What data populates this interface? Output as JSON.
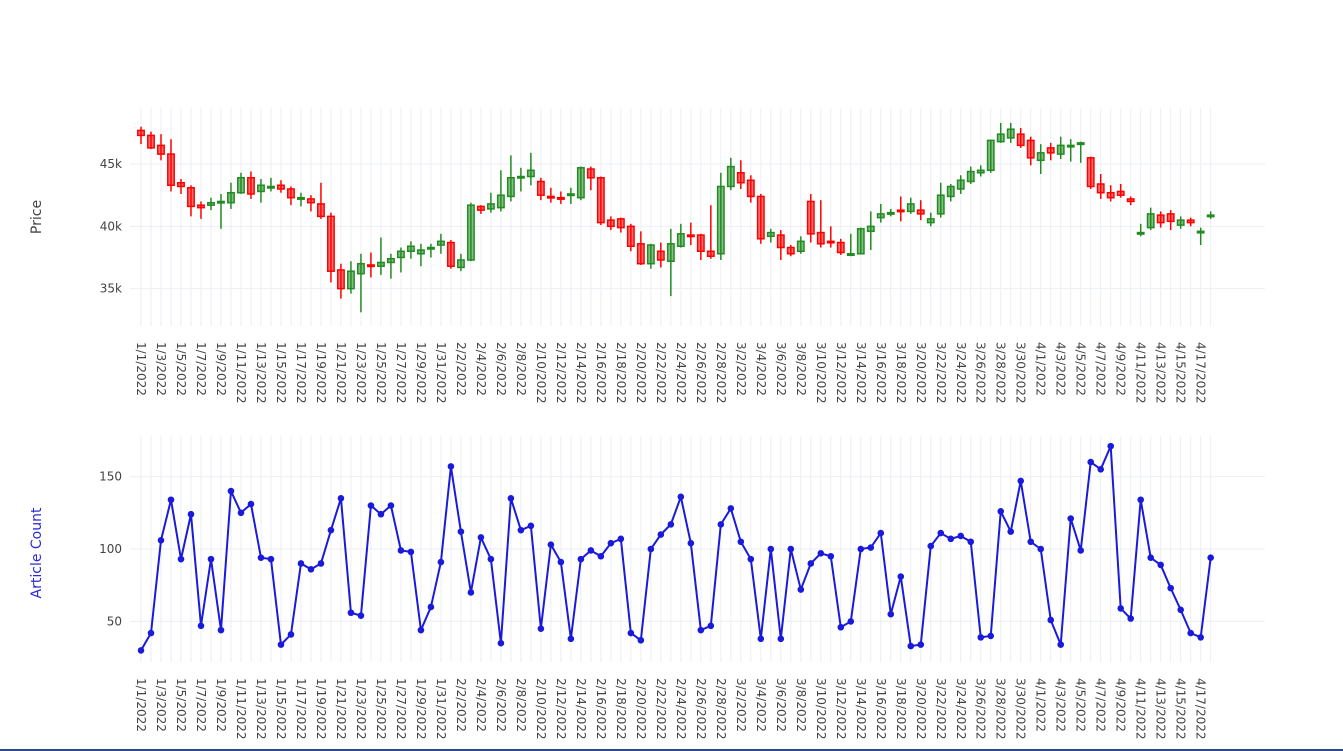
{
  "chart_data": [
    {
      "type": "candlestick",
      "ylabel": "Price",
      "ylim": [
        32000,
        49500
      ],
      "yticks": [
        35000,
        40000,
        45000
      ],
      "ytick_labels": [
        "35k",
        "40k",
        "45k"
      ],
      "grid": true,
      "colors": {
        "up": "#228b22",
        "down": "#ff0000"
      },
      "x": [
        "1/1/2022",
        "1/2/2022",
        "1/3/2022",
        "1/4/2022",
        "1/5/2022",
        "1/6/2022",
        "1/7/2022",
        "1/8/2022",
        "1/9/2022",
        "1/10/2022",
        "1/11/2022",
        "1/12/2022",
        "1/13/2022",
        "1/14/2022",
        "1/15/2022",
        "1/16/2022",
        "1/17/2022",
        "1/18/2022",
        "1/19/2022",
        "1/20/2022",
        "1/21/2022",
        "1/22/2022",
        "1/23/2022",
        "1/24/2022",
        "1/25/2022",
        "1/26/2022",
        "1/27/2022",
        "1/28/2022",
        "1/29/2022",
        "1/30/2022",
        "1/31/2022",
        "2/1/2022",
        "2/2/2022",
        "2/3/2022",
        "2/4/2022",
        "2/5/2022",
        "2/6/2022",
        "2/7/2022",
        "2/8/2022",
        "2/9/2022",
        "2/10/2022",
        "2/11/2022",
        "2/12/2022",
        "2/13/2022",
        "2/14/2022",
        "2/15/2022",
        "2/16/2022",
        "2/17/2022",
        "2/18/2022",
        "2/19/2022",
        "2/20/2022",
        "2/21/2022",
        "2/22/2022",
        "2/23/2022",
        "2/24/2022",
        "2/25/2022",
        "2/26/2022",
        "2/27/2022",
        "2/28/2022",
        "3/1/2022",
        "3/2/2022",
        "3/3/2022",
        "3/4/2022",
        "3/5/2022",
        "3/6/2022",
        "3/7/2022",
        "3/8/2022",
        "3/9/2022",
        "3/10/2022",
        "3/11/2022",
        "3/12/2022",
        "3/13/2022",
        "3/14/2022",
        "3/15/2022",
        "3/16/2022",
        "3/17/2022",
        "3/18/2022",
        "3/19/2022",
        "3/20/2022",
        "3/21/2022",
        "3/22/2022",
        "3/23/2022",
        "3/24/2022",
        "3/25/2022",
        "3/26/2022",
        "3/27/2022",
        "3/28/2022",
        "3/29/2022",
        "3/30/2022",
        "3/31/2022",
        "4/1/2022",
        "4/2/2022",
        "4/3/2022",
        "4/4/2022",
        "4/5/2022",
        "4/6/2022",
        "4/7/2022",
        "4/8/2022",
        "4/9/2022",
        "4/10/2022",
        "4/11/2022",
        "4/12/2022",
        "4/13/2022",
        "4/14/2022",
        "4/15/2022",
        "4/16/2022",
        "4/17/2022",
        "4/18/2022"
      ],
      "open": [
        47700,
        47300,
        46500,
        45800,
        43500,
        43100,
        41700,
        41700,
        41900,
        41900,
        42700,
        43900,
        42800,
        43200,
        43300,
        43000,
        42300,
        42200,
        41800,
        40800,
        36500,
        35000,
        36200,
        36900,
        36800,
        37100,
        37500,
        38000,
        37800,
        38200,
        38500,
        38700,
        36700,
        37300,
        41600,
        41400,
        41500,
        42400,
        44000,
        44000,
        43600,
        42400,
        42300,
        42500,
        42300,
        44600,
        43900,
        40500,
        40600,
        40000,
        38600,
        37000,
        38000,
        37200,
        38400,
        39300,
        39300,
        38000,
        37800,
        43200,
        44300,
        43700,
        42400,
        39200,
        39300,
        38300,
        38000,
        42000,
        39500,
        38800,
        38700,
        37800,
        37800,
        39600,
        40700,
        41100,
        41300,
        41200,
        41300,
        40300,
        41000,
        42400,
        43000,
        43600,
        44300,
        44500,
        46800,
        47100,
        47400,
        46900,
        45300,
        46300,
        45800,
        46500,
        46600,
        45500,
        43400,
        42700,
        42800,
        42200,
        39500,
        39900,
        40900,
        41000,
        40100,
        40500,
        39600,
        40800
      ],
      "close": [
        47300,
        46300,
        45800,
        43300,
        43200,
        41600,
        41500,
        41900,
        42000,
        42700,
        43900,
        42600,
        43300,
        43200,
        43000,
        42300,
        42300,
        41900,
        40800,
        36400,
        35000,
        36400,
        37000,
        36800,
        37100,
        37400,
        38000,
        38400,
        38100,
        38300,
        38800,
        36800,
        37300,
        41700,
        41300,
        41800,
        42500,
        43900,
        44000,
        44500,
        42500,
        42300,
        42200,
        42600,
        44700,
        43900,
        40300,
        40000,
        39900,
        38400,
        37000,
        38500,
        37300,
        38600,
        39400,
        39200,
        38000,
        37600,
        43200,
        44800,
        43500,
        42400,
        39000,
        39500,
        38300,
        37800,
        38800,
        39400,
        38600,
        38700,
        37900,
        37800,
        39800,
        40000,
        41000,
        41100,
        41200,
        41800,
        41000,
        40600,
        42500,
        43200,
        43700,
        44400,
        44500,
        46900,
        47400,
        47800,
        46500,
        45500,
        45900,
        45900,
        46500,
        46500,
        46700,
        43200,
        42700,
        42300,
        42500,
        42000,
        39500,
        41000,
        40300,
        40400,
        40500,
        40300,
        39600,
        40900
      ],
      "high": [
        48000,
        47600,
        47400,
        47000,
        43800,
        43300,
        42000,
        42300,
        42600,
        43500,
        44300,
        44400,
        43800,
        43900,
        43700,
        43200,
        42700,
        42500,
        43500,
        41100,
        37000,
        37200,
        37800,
        37900,
        39100,
        37800,
        38300,
        38800,
        38600,
        38600,
        39400,
        38900,
        37800,
        41900,
        41700,
        42700,
        44500,
        45700,
        44700,
        45900,
        43900,
        43100,
        42800,
        43100,
        44800,
        44800,
        44000,
        40800,
        40700,
        40200,
        39600,
        38600,
        38700,
        39800,
        40200,
        40300,
        39400,
        41700,
        44300,
        45500,
        45300,
        44100,
        42600,
        39800,
        39700,
        38500,
        39200,
        42600,
        42100,
        40000,
        39000,
        39400,
        39900,
        41200,
        41800,
        41400,
        42400,
        42300,
        42100,
        41100,
        43500,
        43400,
        44100,
        44800,
        44900,
        46900,
        48300,
        48300,
        47900,
        47200,
        46600,
        46700,
        47200,
        47000,
        46800,
        45600,
        44200,
        43300,
        43400,
        42400,
        40200,
        41500,
        41200,
        41300,
        40800,
        40700,
        39900,
        41200
      ],
      "low": [
        46600,
        46200,
        45300,
        42800,
        42600,
        40800,
        40600,
        41300,
        39800,
        41400,
        42600,
        42200,
        41900,
        42800,
        42700,
        41700,
        41600,
        41200,
        40600,
        35500,
        34200,
        34600,
        33100,
        35900,
        36100,
        35800,
        36300,
        37400,
        36800,
        37500,
        37800,
        36600,
        36400,
        37200,
        41000,
        41100,
        41200,
        42000,
        42800,
        43300,
        42100,
        41900,
        41800,
        41800,
        42100,
        42900,
        40100,
        39700,
        39500,
        38000,
        36900,
        36600,
        36700,
        34400,
        38300,
        38500,
        37300,
        37400,
        37300,
        42900,
        43000,
        41900,
        38600,
        38700,
        37300,
        37600,
        37800,
        38700,
        38300,
        38300,
        37700,
        37600,
        37800,
        38100,
        40300,
        40800,
        40400,
        41000,
        40500,
        40000,
        40700,
        42000,
        42600,
        43400,
        44000,
        44300,
        46700,
        46700,
        46300,
        44900,
        44200,
        45300,
        45400,
        45200,
        45100,
        43000,
        42200,
        42000,
        42300,
        41700,
        39200,
        39700,
        39900,
        39700,
        39800,
        40000,
        38500,
        40600
      ]
    },
    {
      "type": "line",
      "ylabel": "Article Count",
      "ylim": [
        22,
        178
      ],
      "yticks": [
        50,
        100,
        150
      ],
      "ytick_labels": [
        "50",
        "100",
        "150"
      ],
      "grid": true,
      "colors": {
        "line": "#1a1adb",
        "label": "#2a2ad6"
      },
      "x": [
        "1/1/2022",
        "1/2/2022",
        "1/3/2022",
        "1/4/2022",
        "1/5/2022",
        "1/6/2022",
        "1/7/2022",
        "1/8/2022",
        "1/9/2022",
        "1/10/2022",
        "1/11/2022",
        "1/12/2022",
        "1/13/2022",
        "1/14/2022",
        "1/15/2022",
        "1/16/2022",
        "1/17/2022",
        "1/18/2022",
        "1/19/2022",
        "1/20/2022",
        "1/21/2022",
        "1/22/2022",
        "1/23/2022",
        "1/24/2022",
        "1/25/2022",
        "1/26/2022",
        "1/27/2022",
        "1/28/2022",
        "1/29/2022",
        "1/30/2022",
        "1/31/2022",
        "2/1/2022",
        "2/2/2022",
        "2/3/2022",
        "2/4/2022",
        "2/5/2022",
        "2/6/2022",
        "2/7/2022",
        "2/8/2022",
        "2/9/2022",
        "2/10/2022",
        "2/11/2022",
        "2/12/2022",
        "2/13/2022",
        "2/14/2022",
        "2/15/2022",
        "2/16/2022",
        "2/17/2022",
        "2/18/2022",
        "2/19/2022",
        "2/20/2022",
        "2/21/2022",
        "2/22/2022",
        "2/23/2022",
        "2/24/2022",
        "2/25/2022",
        "2/26/2022",
        "2/27/2022",
        "2/28/2022",
        "3/1/2022",
        "3/2/2022",
        "3/3/2022",
        "3/4/2022",
        "3/5/2022",
        "3/6/2022",
        "3/7/2022",
        "3/8/2022",
        "3/9/2022",
        "3/10/2022",
        "3/11/2022",
        "3/12/2022",
        "3/13/2022",
        "3/14/2022",
        "3/15/2022",
        "3/16/2022",
        "3/17/2022",
        "3/18/2022",
        "3/19/2022",
        "3/20/2022",
        "3/21/2022",
        "3/22/2022",
        "3/23/2022",
        "3/24/2022",
        "3/25/2022",
        "3/26/2022",
        "3/27/2022",
        "3/28/2022",
        "3/29/2022",
        "3/30/2022",
        "3/31/2022",
        "4/1/2022",
        "4/2/2022",
        "4/3/2022",
        "4/4/2022",
        "4/5/2022",
        "4/6/2022",
        "4/7/2022",
        "4/8/2022",
        "4/9/2022",
        "4/10/2022",
        "4/11/2022",
        "4/12/2022",
        "4/13/2022",
        "4/14/2022",
        "4/15/2022",
        "4/16/2022",
        "4/17/2022",
        "4/18/2022"
      ],
      "values": [
        30,
        42,
        106,
        134,
        93,
        124,
        47,
        93,
        44,
        140,
        125,
        131,
        94,
        93,
        34,
        41,
        90,
        86,
        90,
        113,
        135,
        56,
        54,
        130,
        124,
        130,
        99,
        98,
        44,
        60,
        91,
        157,
        112,
        70,
        108,
        93,
        35,
        135,
        113,
        116,
        45,
        103,
        91,
        38,
        93,
        99,
        95,
        104,
        107,
        42,
        37,
        100,
        110,
        117,
        136,
        104,
        44,
        47,
        117,
        128,
        105,
        93,
        38,
        100,
        38,
        100,
        72,
        90,
        97,
        95,
        46,
        50,
        100,
        101,
        111,
        55,
        81,
        33,
        34,
        102,
        111,
        107,
        109,
        105,
        39,
        40,
        126,
        112,
        147,
        105,
        100,
        51,
        34,
        121,
        99,
        160,
        155,
        171,
        59,
        52,
        134,
        94,
        89,
        73,
        58,
        42,
        39,
        94
      ]
    }
  ]
}
